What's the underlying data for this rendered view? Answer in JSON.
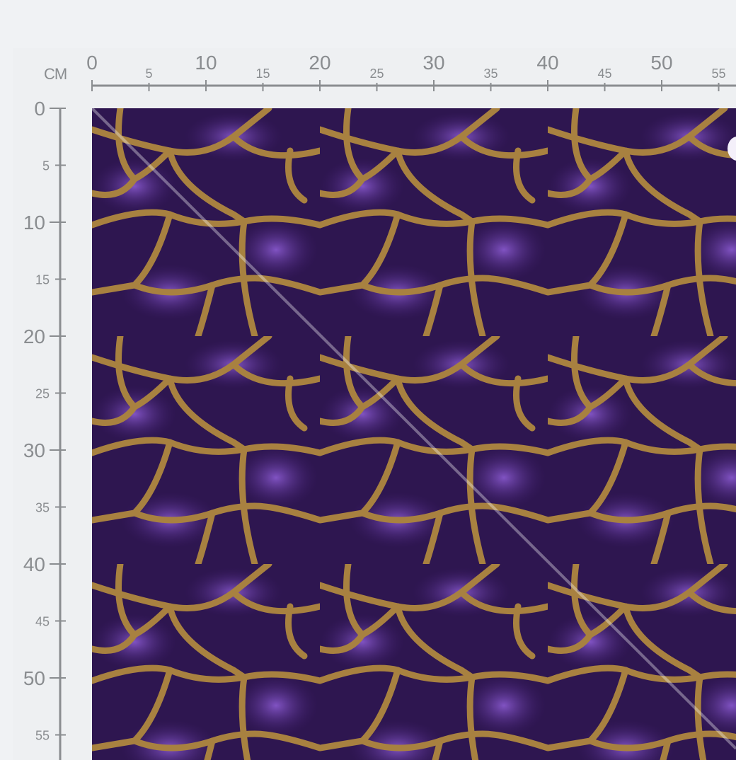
{
  "ruler": {
    "unit": "CM",
    "horizontal_labels": [
      "0",
      "5",
      "10",
      "15",
      "20",
      "25",
      "30",
      "35",
      "40",
      "45",
      "50",
      "55"
    ],
    "vertical_labels": [
      "0",
      "5",
      "10",
      "15",
      "20",
      "25",
      "30",
      "35",
      "40",
      "45",
      "50",
      "55"
    ],
    "color": "#8a8d90"
  },
  "fabric": {
    "pattern": "purple giraffe print with gold veins",
    "base_color": "#2e1650",
    "highlight_color": "#7a4cc0",
    "vein_color": "#a88140"
  }
}
